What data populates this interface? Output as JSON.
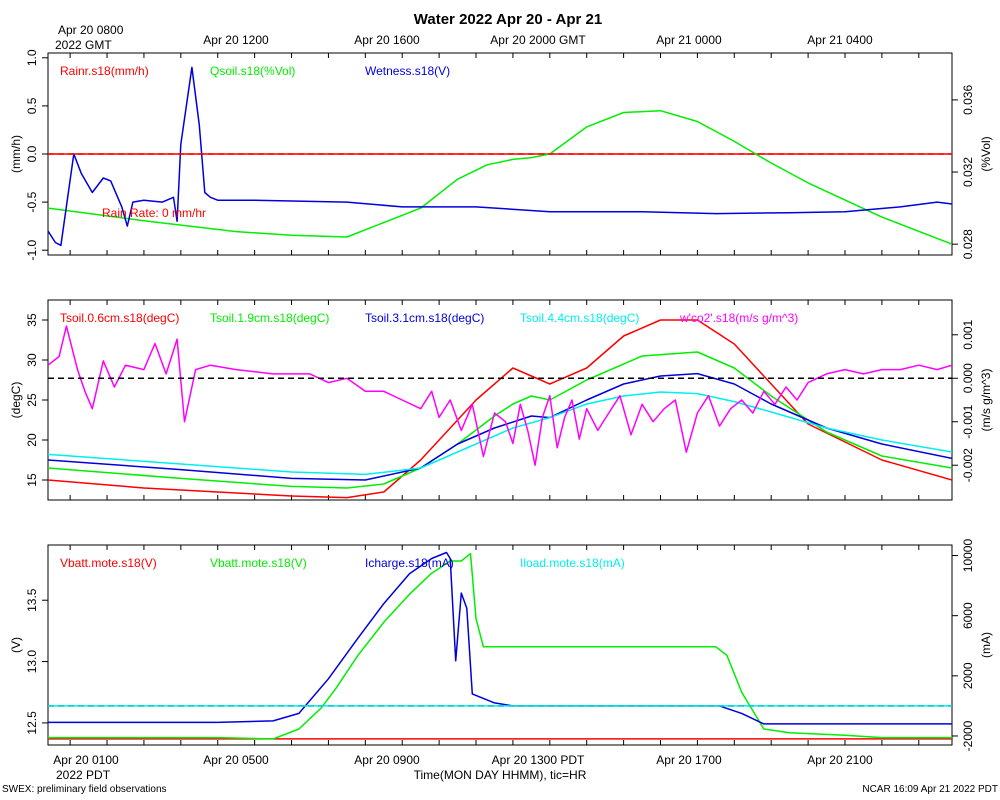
{
  "title": "Water 2022 Apr 20 - Apr 21",
  "top_axis": {
    "first_label": [
      "Apr 20 0800",
      "2022 GMT"
    ],
    "labels": [
      "Apr 20 1200",
      "Apr 20 1600",
      "Apr 20 2000 GMT",
      "Apr 21 0000",
      "Apr 21 0400"
    ]
  },
  "bottom_axis": {
    "labels": [
      "Apr 20 0100",
      "Apr 20 0500",
      "Apr 20 0900",
      "Apr 20 1300 PDT",
      "Apr 20 1700",
      "Apr 20 2100"
    ],
    "year_label": "2022 PDT",
    "xlabel": "Time(MON DAY HHMM), tic=HR"
  },
  "footer": {
    "left": "SWEX: preliminary field observations",
    "right": "NCAR 16:09 Apr 21 2022 PDT"
  },
  "chart_data": [
    {
      "type": "line",
      "x_units": "hours since Apr 20 0000 PDT",
      "xlim": [
        -0.6,
        23.9
      ],
      "ylabel": "(mm/h)",
      "ylim": [
        -1.05,
        1.05
      ],
      "y_ticks": [
        -1.0,
        -0.5,
        0.0,
        0.5,
        1.0
      ],
      "y_tick_labels": [
        "-1.0",
        "-0.5",
        "0.0",
        "0.5",
        "1.0"
      ],
      "y2label": "(%Vol)",
      "y2lim": [
        0.0274,
        0.0386
      ],
      "y2_ticks": [
        0.028,
        0.032,
        0.036
      ],
      "y2_tick_labels": [
        "0.028",
        "0.032",
        "0.036"
      ],
      "ref_lines": [
        {
          "axis": "left",
          "value": 0.0,
          "color": "#ff0000",
          "dash": true
        }
      ],
      "annotation": "Rain Rate: 0 mm/hr",
      "series": [
        {
          "name": "Rainr.s18(mm/h)",
          "color": "#ff0000",
          "axis": "left",
          "x": [
            -0.6,
            23.9
          ],
          "values": [
            0.0,
            0.0
          ]
        },
        {
          "name": "Qsoil.s18(%Vol)",
          "color": "#00ee00",
          "axis": "right",
          "x": [
            -0.6,
            2.0,
            4.5,
            6.0,
            7.5,
            9.5,
            10.5,
            11.3,
            12.0,
            12.5,
            13.0,
            14.0,
            15.0,
            16.0,
            17.0,
            18.0,
            19.0,
            20.0,
            22.0,
            23.9
          ],
          "values": [
            0.03,
            0.0293,
            0.0287,
            0.0285,
            0.0284,
            0.03,
            0.0316,
            0.0324,
            0.0327,
            0.0328,
            0.033,
            0.0345,
            0.0353,
            0.0354,
            0.0348,
            0.0337,
            0.0325,
            0.0314,
            0.0295,
            0.028
          ]
        },
        {
          "name": "Wetness.s18(V)",
          "color": "#0000dd",
          "axis": "left",
          "x": [
            -0.6,
            -0.4,
            -0.25,
            0.1,
            0.3,
            0.6,
            0.9,
            1.1,
            1.4,
            1.55,
            1.7,
            2.0,
            2.5,
            2.8,
            2.9,
            3.0,
            3.3,
            3.5,
            3.65,
            3.8,
            4.0,
            5.0,
            7.5,
            9.0,
            11.0,
            13.0,
            15.5,
            17.5,
            19.5,
            21.0,
            22.5,
            23.5,
            23.9
          ],
          "values": [
            -0.8,
            -0.92,
            -0.95,
            0.0,
            -0.2,
            -0.4,
            -0.25,
            -0.28,
            -0.55,
            -0.75,
            -0.5,
            -0.48,
            -0.5,
            -0.45,
            -0.7,
            0.1,
            0.9,
            0.3,
            -0.4,
            -0.45,
            -0.48,
            -0.48,
            -0.5,
            -0.55,
            -0.55,
            -0.6,
            -0.6,
            -0.62,
            -0.61,
            -0.6,
            -0.55,
            -0.5,
            -0.52
          ]
        }
      ]
    },
    {
      "type": "line",
      "x_units": "hours since Apr 20 0000 PDT",
      "xlim": [
        -0.6,
        23.9
      ],
      "ylabel": "(degC)",
      "ylim": [
        12.5,
        37.5
      ],
      "y_ticks": [
        15,
        20,
        25,
        30,
        35
      ],
      "y_tick_labels": [
        "15",
        "20",
        "25",
        "30",
        "35"
      ],
      "y2label": "(m/s g/m^3)",
      "y2lim": [
        -0.0028,
        0.0018
      ],
      "y2_ticks": [
        -0.002,
        -0.001,
        0.0,
        0.001
      ],
      "y2_tick_labels": [
        "-0.002",
        "-0.001",
        "0.000",
        "0.001"
      ],
      "ref_lines": [
        {
          "axis": "right",
          "value": 0.0,
          "color": "#000000",
          "dash": true
        }
      ],
      "series": [
        {
          "name": "Tsoil.0.6cm.s18(degC)",
          "color": "#ff0000",
          "axis": "left",
          "x": [
            -0.6,
            2.0,
            4.0,
            6.0,
            7.5,
            8.5,
            9.5,
            10.5,
            11.0,
            11.5,
            12.0,
            12.5,
            13.0,
            14.0,
            15.0,
            16.0,
            17.0,
            18.0,
            19.0,
            20.0,
            22.0,
            23.9
          ],
          "values": [
            15.0,
            14.0,
            13.5,
            13.0,
            12.8,
            13.5,
            17.5,
            22.5,
            25.0,
            27.0,
            29.0,
            28.0,
            27.0,
            29.0,
            33.0,
            35.0,
            35.0,
            32.0,
            27.0,
            22.0,
            17.5,
            15.0
          ]
        },
        {
          "name": "Tsoil.1.9cm.s18(degC)",
          "color": "#00ee00",
          "axis": "left",
          "x": [
            -0.6,
            3.0,
            6.0,
            7.5,
            8.5,
            9.5,
            10.5,
            11.5,
            12.0,
            12.5,
            13.0,
            14.0,
            15.5,
            17.0,
            18.0,
            19.0,
            20.5,
            22.0,
            23.9
          ],
          "values": [
            16.5,
            15.2,
            14.2,
            14.0,
            14.5,
            16.5,
            19.5,
            23.0,
            24.5,
            25.5,
            25.0,
            27.5,
            30.5,
            31.0,
            29.0,
            25.5,
            21.0,
            18.0,
            16.5
          ]
        },
        {
          "name": "Tsoil.3.1cm.s18(degC)",
          "color": "#0000dd",
          "axis": "left",
          "x": [
            -0.6,
            3.0,
            6.0,
            8.0,
            9.5,
            10.5,
            11.5,
            12.5,
            13.0,
            14.0,
            15.0,
            16.0,
            17.0,
            18.0,
            19.0,
            20.5,
            22.0,
            23.9
          ],
          "values": [
            17.5,
            16.3,
            15.2,
            15.0,
            16.5,
            19.5,
            21.5,
            23.0,
            22.8,
            25.0,
            27.0,
            28.0,
            28.3,
            27.0,
            24.5,
            21.5,
            19.5,
            17.7
          ]
        },
        {
          "name": "Tsoil.4.4cm.s18(degC)",
          "color": "#00eeee",
          "axis": "left",
          "x": [
            -0.6,
            3.0,
            6.0,
            8.0,
            9.5,
            11.0,
            12.0,
            13.0,
            14.0,
            15.0,
            16.0,
            17.0,
            18.0,
            19.0,
            20.5,
            22.0,
            23.9
          ],
          "values": [
            18.2,
            17.0,
            16.0,
            15.7,
            16.5,
            19.5,
            21.5,
            22.8,
            24.5,
            25.5,
            26.0,
            25.8,
            24.8,
            23.5,
            21.5,
            20.0,
            18.5
          ]
        },
        {
          "name": "w'co2'.s18(m/s g/m^3)",
          "color": "#ff00ff",
          "axis": "right",
          "x": [
            -0.6,
            -0.3,
            -0.1,
            0.2,
            0.4,
            0.6,
            0.9,
            1.2,
            1.5,
            2.0,
            2.3,
            2.6,
            2.9,
            3.1,
            3.4,
            3.8,
            4.5,
            5.5,
            6.5,
            7.0,
            7.5,
            8.0,
            8.5,
            9.0,
            9.5,
            9.8,
            10.0,
            10.3,
            10.6,
            10.9,
            11.2,
            11.5,
            11.8,
            12.0,
            12.2,
            12.4,
            12.6,
            12.8,
            13.0,
            13.2,
            13.4,
            13.6,
            13.8,
            14.0,
            14.3,
            14.6,
            14.9,
            15.2,
            15.5,
            15.8,
            16.1,
            16.4,
            16.7,
            17.0,
            17.3,
            17.6,
            17.9,
            18.2,
            18.5,
            18.8,
            19.1,
            19.4,
            19.7,
            20.0,
            20.5,
            21.0,
            21.5,
            22.0,
            22.5,
            23.0,
            23.5,
            23.9
          ],
          "values": [
            0.0003,
            0.0005,
            0.0012,
            0.0002,
            -0.0003,
            -0.0007,
            0.0004,
            -0.0002,
            0.0003,
            0.0002,
            0.0008,
            0.0001,
            0.0009,
            -0.001,
            0.0002,
            0.0003,
            0.0002,
            0.0001,
            0.0001,
            -0.0001,
            0.0,
            -0.0003,
            -0.0003,
            -0.0005,
            -0.0007,
            -0.0003,
            -0.0009,
            -0.0005,
            -0.0012,
            -0.0006,
            -0.0018,
            -0.0008,
            -0.001,
            -0.0015,
            -0.0006,
            -0.0012,
            -0.002,
            -0.0009,
            -0.0004,
            -0.0016,
            -0.0009,
            -0.0005,
            -0.0014,
            -0.0007,
            -0.0012,
            -0.0008,
            -0.0004,
            -0.0013,
            -0.0006,
            -0.001,
            -0.0007,
            -0.0005,
            -0.0017,
            -0.0008,
            -0.0004,
            -0.0011,
            -0.0007,
            -0.0005,
            -0.0008,
            -0.0003,
            -0.0006,
            -0.0002,
            -0.0005,
            -0.0001,
            0.0001,
            0.0002,
            0.0001,
            0.0002,
            0.0002,
            0.0003,
            0.0002,
            0.0003
          ]
        }
      ]
    },
    {
      "type": "line",
      "x_units": "hours since Apr 20 0000 PDT",
      "xlim": [
        -0.6,
        23.9
      ],
      "ylabel": "(V)",
      "ylim": [
        12.32,
        13.95
      ],
      "y_ticks": [
        12.5,
        13.0,
        13.5
      ],
      "y_tick_labels": [
        "12.5",
        "13.0",
        "13.5"
      ],
      "y2label": "(mA)",
      "y2lim": [
        -2600,
        10700
      ],
      "y2_ticks": [
        -2000,
        2000,
        6000,
        10000
      ],
      "y2_tick_labels": [
        "-2000",
        "2000",
        "6000",
        "10000"
      ],
      "ref_lines": [
        {
          "axis": "right",
          "value": 0,
          "color": "#000000",
          "dash": true
        },
        {
          "axis": "right",
          "value": 0,
          "color": "#00eeee",
          "dash": true
        }
      ],
      "series": [
        {
          "name": "Vbatt.mote.s18(V)",
          "color": "#ff0000",
          "axis": "left",
          "x": [
            -0.6,
            23.9
          ],
          "values": [
            12.37,
            12.37
          ]
        },
        {
          "name": "Vbatt.mote.s18(V)",
          "color": "#00ee00",
          "axis": "left",
          "x": [
            -0.6,
            2.0,
            4.0,
            5.5,
            6.2,
            6.8,
            7.2,
            7.8,
            8.5,
            9.2,
            9.8,
            10.3,
            10.6,
            10.85,
            11.0,
            11.2,
            11.4,
            12.0,
            13.0,
            14.0,
            15.0,
            16.0,
            17.0,
            17.5,
            17.8,
            18.2,
            18.5,
            18.8,
            19.5,
            21.0,
            22.0,
            23.9
          ],
          "values": [
            12.38,
            12.38,
            12.38,
            12.37,
            12.45,
            12.62,
            12.78,
            13.05,
            13.32,
            13.55,
            13.72,
            13.82,
            13.82,
            13.88,
            13.35,
            13.12,
            13.12,
            13.12,
            13.12,
            13.12,
            13.12,
            13.12,
            13.12,
            13.12,
            13.05,
            12.75,
            12.6,
            12.45,
            12.42,
            12.4,
            12.38,
            12.38
          ]
        },
        {
          "name": "Icharge.s18(mA)",
          "color": "#0000dd",
          "axis": "right",
          "x": [
            -0.6,
            4.0,
            5.5,
            6.2,
            7.0,
            7.8,
            8.5,
            9.2,
            9.8,
            10.2,
            10.3,
            10.45,
            10.6,
            10.75,
            10.9,
            11.0,
            11.5,
            12.0,
            13.0,
            15.0,
            17.0,
            17.6,
            18.2,
            18.8,
            19.5,
            21.0,
            23.9
          ],
          "values": [
            -1100,
            -1100,
            -1000,
            -500,
            1800,
            4500,
            6800,
            8800,
            9800,
            10200,
            9800,
            3000,
            7500,
            6500,
            800,
            700,
            200,
            0,
            0,
            0,
            0,
            0,
            -500,
            -1200,
            -1200,
            -1200,
            -1200
          ]
        },
        {
          "name": "Iload.mote.s18(mA)",
          "color": "#00eeee",
          "axis": "right",
          "x": [
            -0.6,
            23.9
          ],
          "values": [
            0,
            0
          ]
        }
      ]
    }
  ]
}
